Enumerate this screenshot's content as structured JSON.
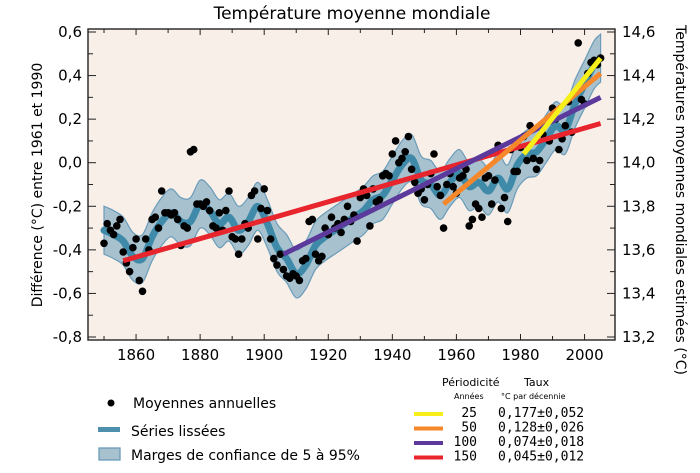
{
  "chart_data": {
    "type": "scatter",
    "title": "Température moyenne mondiale",
    "xlabel": "",
    "ylabel": "Différence (°C) entre 1961 et 1990",
    "ylabel_right": "Températures moyennes mondiales estimées (°C)",
    "xlim": [
      1845,
      2009.5
    ],
    "ylim": [
      -0.8,
      0.6
    ],
    "ylim_right": [
      13.2,
      14.6
    ],
    "x_ticks": [
      1860,
      1880,
      1900,
      1920,
      1940,
      1960,
      1980,
      2000
    ],
    "x_tick_labels": [
      "1860",
      "1880",
      "1900",
      "1920",
      "1940",
      "1960",
      "1980",
      "2000"
    ],
    "y_ticks": [
      0.6,
      0.4,
      0.2,
      0.0,
      -0.2,
      -0.4,
      -0.6,
      -0.8
    ],
    "y_tick_labels": [
      "0,6",
      "0,4",
      "0,2",
      "0,0",
      "-0,2",
      "-0,4",
      "-0,6",
      "-0,8"
    ],
    "y_right_ticks": [
      14.6,
      14.4,
      14.2,
      14.0,
      13.8,
      13.6,
      13.4,
      13.2
    ],
    "y_right_tick_labels": [
      "14,6",
      "14,4",
      "14,2",
      "14,0",
      "13,8",
      "13,6",
      "13,4",
      "13,2"
    ],
    "grid": false,
    "background": "#f8efe9",
    "annual": {
      "name": "Moyennes annuelles",
      "x": [
        1850,
        1851,
        1852,
        1853,
        1854,
        1855,
        1856,
        1857,
        1858,
        1859,
        1860,
        1861,
        1862,
        1863,
        1864,
        1865,
        1866,
        1867,
        1868,
        1869,
        1870,
        1871,
        1872,
        1873,
        1874,
        1875,
        1876,
        1877,
        1878,
        1879,
        1880,
        1881,
        1882,
        1883,
        1884,
        1885,
        1886,
        1887,
        1888,
        1889,
        1890,
        1891,
        1892,
        1893,
        1894,
        1895,
        1896,
        1897,
        1898,
        1899,
        1900,
        1901,
        1902,
        1903,
        1904,
        1905,
        1906,
        1907,
        1908,
        1909,
        1910,
        1911,
        1912,
        1913,
        1914,
        1915,
        1916,
        1917,
        1918,
        1919,
        1920,
        1921,
        1922,
        1923,
        1924,
        1925,
        1926,
        1927,
        1928,
        1929,
        1930,
        1931,
        1932,
        1933,
        1934,
        1935,
        1936,
        1937,
        1938,
        1939,
        1940,
        1941,
        1942,
        1943,
        1944,
        1945,
        1946,
        1947,
        1948,
        1949,
        1950,
        1951,
        1952,
        1953,
        1954,
        1955,
        1956,
        1957,
        1958,
        1959,
        1960,
        1961,
        1962,
        1963,
        1964,
        1965,
        1966,
        1967,
        1968,
        1969,
        1970,
        1971,
        1972,
        1973,
        1974,
        1975,
        1976,
        1977,
        1978,
        1979,
        1980,
        1981,
        1982,
        1983,
        1984,
        1985,
        1986,
        1987,
        1988,
        1989,
        1990,
        1991,
        1992,
        1993,
        1994,
        1995,
        1996,
        1997,
        1998,
        1999,
        2000,
        2001,
        2002,
        2003,
        2004,
        2005
      ],
      "y": [
        -0.37,
        -0.28,
        -0.31,
        -0.33,
        -0.29,
        -0.26,
        -0.41,
        -0.46,
        -0.5,
        -0.39,
        -0.35,
        -0.54,
        -0.59,
        -0.35,
        -0.4,
        -0.26,
        -0.25,
        -0.3,
        -0.13,
        -0.23,
        -0.23,
        -0.24,
        -0.23,
        -0.26,
        -0.38,
        -0.29,
        -0.3,
        0.05,
        0.06,
        -0.19,
        -0.19,
        -0.2,
        -0.18,
        -0.22,
        -0.29,
        -0.3,
        -0.23,
        -0.31,
        -0.22,
        -0.13,
        -0.34,
        -0.35,
        -0.42,
        -0.35,
        -0.28,
        -0.3,
        -0.15,
        -0.13,
        -0.35,
        -0.21,
        -0.12,
        -0.22,
        -0.35,
        -0.44,
        -0.47,
        -0.42,
        -0.49,
        -0.52,
        -0.53,
        -0.51,
        -0.52,
        -0.54,
        -0.45,
        -0.44,
        -0.27,
        -0.26,
        -0.42,
        -0.45,
        -0.43,
        -0.3,
        -0.33,
        -0.25,
        -0.3,
        -0.28,
        -0.32,
        -0.26,
        -0.2,
        -0.27,
        -0.24,
        -0.36,
        -0.16,
        -0.12,
        -0.15,
        -0.29,
        -0.12,
        -0.18,
        -0.17,
        -0.06,
        -0.05,
        -0.06,
        0.04,
        0.1,
        0.0,
        0.02,
        0.05,
        0.12,
        -0.03,
        -0.09,
        -0.14,
        -0.12,
        -0.17,
        -0.1,
        -0.05,
        0.04,
        -0.11,
        -0.15,
        -0.3,
        -0.1,
        -0.05,
        -0.11,
        -0.14,
        -0.07,
        -0.06,
        -0.03,
        -0.29,
        -0.26,
        -0.19,
        -0.21,
        -0.25,
        -0.07,
        -0.06,
        -0.19,
        -0.08,
        0.08,
        -0.21,
        -0.16,
        -0.27,
        0.06,
        -0.04,
        -0.04,
        0.07,
        0.12,
        0.01,
        0.17,
        0.02,
        -0.03,
        0.01,
        0.13,
        0.18,
        0.1,
        0.25,
        0.2,
        0.06,
        0.11,
        0.17,
        0.28,
        0.14,
        0.32,
        0.55,
        0.29,
        0.27,
        0.41,
        0.46,
        0.47,
        0.45,
        0.48
      ]
    },
    "smoothed": {
      "name": "Séries lissées",
      "x": [
        1850,
        1853,
        1856,
        1859,
        1862,
        1865,
        1868,
        1871,
        1874,
        1877,
        1880,
        1883,
        1886,
        1889,
        1892,
        1895,
        1898,
        1901,
        1904,
        1907,
        1910,
        1913,
        1916,
        1919,
        1922,
        1925,
        1928,
        1931,
        1934,
        1937,
        1940,
        1943,
        1946,
        1949,
        1952,
        1955,
        1958,
        1961,
        1964,
        1967,
        1970,
        1973,
        1976,
        1979,
        1982,
        1985,
        1988,
        1991,
        1994,
        1997,
        2000,
        2003,
        2005
      ],
      "y": [
        -0.31,
        -0.33,
        -0.36,
        -0.43,
        -0.44,
        -0.34,
        -0.27,
        -0.23,
        -0.27,
        -0.27,
        -0.19,
        -0.22,
        -0.28,
        -0.25,
        -0.31,
        -0.27,
        -0.2,
        -0.28,
        -0.39,
        -0.44,
        -0.51,
        -0.47,
        -0.38,
        -0.34,
        -0.31,
        -0.28,
        -0.25,
        -0.22,
        -0.17,
        -0.15,
        -0.08,
        -0.01,
        0.02,
        -0.08,
        -0.1,
        -0.15,
        -0.09,
        -0.05,
        -0.11,
        -0.09,
        -0.13,
        -0.07,
        -0.12,
        -0.01,
        0.04,
        0.05,
        0.11,
        0.17,
        0.15,
        0.27,
        0.36,
        0.45,
        0.48
      ]
    },
    "confidence_halfwidth": 0.11,
    "trends": [
      {
        "name": "25",
        "period_years": 25,
        "rate": "0,177±0,052",
        "color": "#f6ef1a",
        "x": [
          1981,
          2005
        ],
        "y": [
          0.04,
          0.48
        ]
      },
      {
        "name": "50",
        "period_years": 50,
        "rate": "0,128±0,026",
        "color": "#f6872a",
        "x": [
          1956,
          2005
        ],
        "y": [
          -0.19,
          0.41
        ]
      },
      {
        "name": "100",
        "period_years": 100,
        "rate": "0,074±0,018",
        "color": "#5b3a9c",
        "x": [
          1906,
          2005
        ],
        "y": [
          -0.42,
          0.3
        ]
      },
      {
        "name": "150",
        "period_years": 150,
        "rate": "0,045±0,012",
        "color": "#e8242c",
        "x": [
          1856,
          2005
        ],
        "y": [
          -0.45,
          0.18
        ]
      }
    ],
    "colors": {
      "smoothed": "#3f8aa8",
      "confidence": "#a7c1cf",
      "confidence_edge": "#6a9cb8",
      "dots": "#000000"
    },
    "legend": {
      "placement": "bottom",
      "items": [
        {
          "label": "Moyennes annuelles",
          "symbol": "dot"
        },
        {
          "label": "Séries lissées",
          "symbol": "line"
        },
        {
          "label": "Marges de confiance de 5 à 95%",
          "symbol": "box"
        }
      ]
    },
    "rates_table": {
      "header_period": "Périodicité",
      "header_rate": "Taux",
      "sub_period": "Années",
      "sub_rate": "°C par décennie"
    }
  }
}
